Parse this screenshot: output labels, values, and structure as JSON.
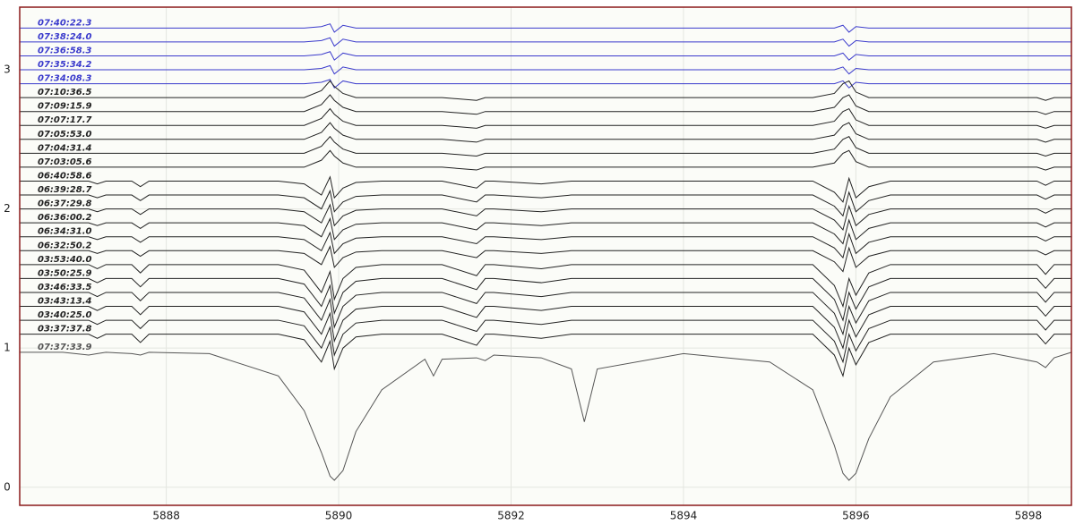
{
  "chart_data": {
    "type": "line",
    "x": [
      5886.3,
      5886.8,
      5887.1,
      5887.2,
      5887.3,
      5887.6,
      5887.7,
      5887.8,
      5888.5,
      5889.3,
      5889.6,
      5889.8,
      5889.9,
      5889.95,
      5890.05,
      5890.2,
      5890.5,
      5891.0,
      5891.1,
      5891.2,
      5891.6,
      5891.7,
      5891.8,
      5892.35,
      5892.7,
      5892.85,
      5893.0,
      5894.0,
      5895.0,
      5895.5,
      5895.75,
      5895.85,
      5895.92,
      5896.0,
      5896.15,
      5896.4,
      5896.9,
      5897.6,
      5898.1,
      5898.2,
      5898.3,
      5898.5
    ],
    "xlim": [
      5886.3,
      5898.5
    ],
    "xticks": [
      5888,
      5890,
      5892,
      5894,
      5896,
      5898
    ],
    "ylim": [
      -0.13,
      3.45
    ],
    "yticks": [
      0,
      1,
      2,
      3
    ],
    "grid": true,
    "series": [
      {
        "name": "07:40:22.3",
        "color": "#3a3acc",
        "values": [
          3.3,
          3.3,
          3.3,
          3.3,
          3.3,
          3.3,
          3.3,
          3.3,
          3.3,
          3.3,
          3.3,
          3.31,
          3.33,
          3.27,
          3.32,
          3.3,
          3.3,
          3.3,
          3.3,
          3.3,
          3.3,
          3.3,
          3.3,
          3.3,
          3.3,
          3.3,
          3.3,
          3.3,
          3.3,
          3.3,
          3.3,
          3.32,
          3.27,
          3.31,
          3.3,
          3.3,
          3.3,
          3.3,
          3.3,
          3.3,
          3.3,
          3.3
        ]
      },
      {
        "name": "07:38:24.0",
        "color": "#3a3acc",
        "values": [
          3.2,
          3.2,
          3.2,
          3.2,
          3.2,
          3.2,
          3.2,
          3.2,
          3.2,
          3.2,
          3.2,
          3.21,
          3.23,
          3.17,
          3.22,
          3.2,
          3.2,
          3.2,
          3.2,
          3.2,
          3.2,
          3.2,
          3.2,
          3.2,
          3.2,
          3.2,
          3.2,
          3.2,
          3.2,
          3.2,
          3.2,
          3.22,
          3.17,
          3.21,
          3.2,
          3.2,
          3.2,
          3.2,
          3.2,
          3.2,
          3.2,
          3.2
        ]
      },
      {
        "name": "07:36:58.3",
        "color": "#3a3acc",
        "values": [
          3.1,
          3.1,
          3.1,
          3.1,
          3.1,
          3.1,
          3.1,
          3.1,
          3.1,
          3.1,
          3.1,
          3.11,
          3.13,
          3.07,
          3.12,
          3.1,
          3.1,
          3.1,
          3.1,
          3.1,
          3.1,
          3.1,
          3.1,
          3.1,
          3.1,
          3.1,
          3.1,
          3.1,
          3.1,
          3.1,
          3.1,
          3.12,
          3.07,
          3.11,
          3.1,
          3.1,
          3.1,
          3.1,
          3.1,
          3.1,
          3.1,
          3.1
        ]
      },
      {
        "name": "07:35:34.2",
        "color": "#3a3acc",
        "values": [
          3,
          3,
          3,
          3,
          3,
          3,
          3,
          3,
          3,
          3,
          3,
          3.01,
          3.03,
          2.97,
          3.02,
          3,
          3,
          3,
          3,
          3,
          3,
          3,
          3,
          3,
          3,
          3,
          3,
          3,
          3,
          3,
          3,
          3.02,
          2.97,
          3.01,
          3,
          3,
          3,
          3,
          3,
          3,
          3,
          3
        ]
      },
      {
        "name": "07:34:08.3",
        "color": "#3a3acc",
        "values": [
          2.9,
          2.9,
          2.9,
          2.9,
          2.9,
          2.9,
          2.9,
          2.9,
          2.9,
          2.9,
          2.9,
          2.91,
          2.93,
          2.87,
          2.92,
          2.9,
          2.9,
          2.9,
          2.9,
          2.9,
          2.9,
          2.9,
          2.9,
          2.9,
          2.9,
          2.9,
          2.9,
          2.9,
          2.9,
          2.9,
          2.9,
          2.92,
          2.87,
          2.91,
          2.9,
          2.9,
          2.9,
          2.9,
          2.9,
          2.9,
          2.9,
          2.9
        ]
      },
      {
        "name": "07:10:36.5",
        "color": "#222222",
        "values": [
          2.8,
          2.8,
          2.8,
          2.8,
          2.8,
          2.8,
          2.8,
          2.8,
          2.8,
          2.8,
          2.8,
          2.85,
          2.92,
          2.88,
          2.83,
          2.8,
          2.8,
          2.8,
          2.8,
          2.8,
          2.78,
          2.8,
          2.8,
          2.8,
          2.8,
          2.8,
          2.8,
          2.8,
          2.8,
          2.8,
          2.83,
          2.9,
          2.92,
          2.84,
          2.8,
          2.8,
          2.8,
          2.8,
          2.8,
          2.78,
          2.8,
          2.8
        ]
      },
      {
        "name": "07:09:15.9",
        "color": "#222222",
        "values": [
          2.7,
          2.7,
          2.7,
          2.7,
          2.7,
          2.7,
          2.7,
          2.7,
          2.7,
          2.7,
          2.7,
          2.75,
          2.82,
          2.78,
          2.73,
          2.7,
          2.7,
          2.7,
          2.7,
          2.7,
          2.68,
          2.7,
          2.7,
          2.7,
          2.7,
          2.7,
          2.7,
          2.7,
          2.7,
          2.7,
          2.73,
          2.8,
          2.82,
          2.74,
          2.7,
          2.7,
          2.7,
          2.7,
          2.7,
          2.68,
          2.7,
          2.7
        ]
      },
      {
        "name": "07:07:17.7",
        "color": "#222222",
        "values": [
          2.6,
          2.6,
          2.6,
          2.6,
          2.6,
          2.6,
          2.6,
          2.6,
          2.6,
          2.6,
          2.6,
          2.65,
          2.72,
          2.68,
          2.63,
          2.6,
          2.6,
          2.6,
          2.6,
          2.6,
          2.58,
          2.6,
          2.6,
          2.6,
          2.6,
          2.6,
          2.6,
          2.6,
          2.6,
          2.6,
          2.63,
          2.7,
          2.72,
          2.64,
          2.6,
          2.6,
          2.6,
          2.6,
          2.6,
          2.58,
          2.6,
          2.6
        ]
      },
      {
        "name": "07:05:53.0",
        "color": "#222222",
        "values": [
          2.5,
          2.5,
          2.5,
          2.5,
          2.5,
          2.5,
          2.5,
          2.5,
          2.5,
          2.5,
          2.5,
          2.55,
          2.62,
          2.58,
          2.53,
          2.5,
          2.5,
          2.5,
          2.5,
          2.5,
          2.48,
          2.5,
          2.5,
          2.5,
          2.5,
          2.5,
          2.5,
          2.5,
          2.5,
          2.5,
          2.53,
          2.6,
          2.62,
          2.54,
          2.5,
          2.5,
          2.5,
          2.5,
          2.5,
          2.48,
          2.5,
          2.5
        ]
      },
      {
        "name": "07:04:31.4",
        "color": "#222222",
        "values": [
          2.4,
          2.4,
          2.4,
          2.4,
          2.4,
          2.4,
          2.4,
          2.4,
          2.4,
          2.4,
          2.4,
          2.45,
          2.52,
          2.48,
          2.43,
          2.4,
          2.4,
          2.4,
          2.4,
          2.4,
          2.38,
          2.4,
          2.4,
          2.4,
          2.4,
          2.4,
          2.4,
          2.4,
          2.4,
          2.4,
          2.43,
          2.5,
          2.52,
          2.44,
          2.4,
          2.4,
          2.4,
          2.4,
          2.4,
          2.38,
          2.4,
          2.4
        ]
      },
      {
        "name": "07:03:05.6",
        "color": "#222222",
        "values": [
          2.3,
          2.3,
          2.3,
          2.3,
          2.3,
          2.3,
          2.3,
          2.3,
          2.3,
          2.3,
          2.3,
          2.35,
          2.42,
          2.38,
          2.33,
          2.3,
          2.3,
          2.3,
          2.3,
          2.3,
          2.28,
          2.3,
          2.3,
          2.3,
          2.3,
          2.3,
          2.3,
          2.3,
          2.3,
          2.3,
          2.33,
          2.4,
          2.42,
          2.34,
          2.3,
          2.3,
          2.3,
          2.3,
          2.3,
          2.28,
          2.3,
          2.3
        ]
      },
      {
        "name": "06:40:58.6",
        "color": "#222222",
        "values": [
          2.2,
          2.2,
          2.2,
          2.18,
          2.2,
          2.2,
          2.16,
          2.2,
          2.2,
          2.2,
          2.18,
          2.1,
          2.23,
          2.08,
          2.15,
          2.19,
          2.2,
          2.2,
          2.2,
          2.2,
          2.15,
          2.2,
          2.2,
          2.18,
          2.2,
          2.2,
          2.2,
          2.2,
          2.2,
          2.2,
          2.12,
          2.05,
          2.22,
          2.08,
          2.16,
          2.2,
          2.2,
          2.2,
          2.2,
          2.17,
          2.2,
          2.2
        ]
      },
      {
        "name": "06:39:28.7",
        "color": "#222222",
        "values": [
          2.1,
          2.1,
          2.1,
          2.08,
          2.1,
          2.1,
          2.06,
          2.1,
          2.1,
          2.1,
          2.08,
          2,
          2.13,
          1.98,
          2.05,
          2.09,
          2.1,
          2.1,
          2.1,
          2.1,
          2.05,
          2.1,
          2.1,
          2.08,
          2.1,
          2.1,
          2.1,
          2.1,
          2.1,
          2.1,
          2.02,
          1.95,
          2.12,
          1.98,
          2.06,
          2.1,
          2.1,
          2.1,
          2.1,
          2.07,
          2.1,
          2.1
        ]
      },
      {
        "name": "06:37:29.8",
        "color": "#222222",
        "values": [
          2,
          2,
          2,
          1.98,
          2,
          2,
          1.96,
          2,
          2,
          2,
          1.98,
          1.9,
          2.03,
          1.88,
          1.95,
          1.99,
          2,
          2,
          2,
          2,
          1.95,
          2,
          2,
          1.98,
          2,
          2,
          2,
          2,
          2,
          2,
          1.92,
          1.85,
          2.02,
          1.88,
          1.96,
          2,
          2,
          2,
          2,
          1.97,
          2,
          2
        ]
      },
      {
        "name": "06:36:00.2",
        "color": "#222222",
        "values": [
          1.9,
          1.9,
          1.9,
          1.88,
          1.9,
          1.9,
          1.86,
          1.9,
          1.9,
          1.9,
          1.88,
          1.8,
          1.93,
          1.78,
          1.85,
          1.89,
          1.9,
          1.9,
          1.9,
          1.9,
          1.85,
          1.9,
          1.9,
          1.88,
          1.9,
          1.9,
          1.9,
          1.9,
          1.9,
          1.9,
          1.82,
          1.75,
          1.92,
          1.78,
          1.86,
          1.9,
          1.9,
          1.9,
          1.9,
          1.87,
          1.9,
          1.9
        ]
      },
      {
        "name": "06:34:31.0",
        "color": "#222222",
        "values": [
          1.8,
          1.8,
          1.8,
          1.78,
          1.8,
          1.8,
          1.76,
          1.8,
          1.8,
          1.8,
          1.78,
          1.7,
          1.83,
          1.68,
          1.75,
          1.79,
          1.8,
          1.8,
          1.8,
          1.8,
          1.75,
          1.8,
          1.8,
          1.78,
          1.8,
          1.8,
          1.8,
          1.8,
          1.8,
          1.8,
          1.72,
          1.65,
          1.82,
          1.68,
          1.76,
          1.8,
          1.8,
          1.8,
          1.8,
          1.77,
          1.8,
          1.8
        ]
      },
      {
        "name": "06:32:50.2",
        "color": "#222222",
        "values": [
          1.7,
          1.7,
          1.7,
          1.68,
          1.7,
          1.7,
          1.66,
          1.7,
          1.7,
          1.7,
          1.68,
          1.6,
          1.73,
          1.58,
          1.65,
          1.69,
          1.7,
          1.7,
          1.7,
          1.7,
          1.65,
          1.7,
          1.7,
          1.68,
          1.7,
          1.7,
          1.7,
          1.7,
          1.7,
          1.7,
          1.62,
          1.55,
          1.72,
          1.58,
          1.66,
          1.7,
          1.7,
          1.7,
          1.7,
          1.67,
          1.7,
          1.7
        ]
      },
      {
        "name": "03:53:40.0",
        "color": "#222222",
        "values": [
          1.6,
          1.6,
          1.6,
          1.57,
          1.6,
          1.6,
          1.54,
          1.6,
          1.6,
          1.6,
          1.56,
          1.4,
          1.55,
          1.35,
          1.5,
          1.58,
          1.6,
          1.6,
          1.6,
          1.6,
          1.52,
          1.6,
          1.6,
          1.57,
          1.6,
          1.6,
          1.6,
          1.6,
          1.6,
          1.6,
          1.45,
          1.3,
          1.5,
          1.38,
          1.54,
          1.6,
          1.6,
          1.6,
          1.6,
          1.53,
          1.6,
          1.6
        ]
      },
      {
        "name": "03:50:25.9",
        "color": "#222222",
        "values": [
          1.5,
          1.5,
          1.5,
          1.47,
          1.5,
          1.5,
          1.44,
          1.5,
          1.5,
          1.5,
          1.46,
          1.3,
          1.45,
          1.25,
          1.4,
          1.48,
          1.5,
          1.5,
          1.5,
          1.5,
          1.42,
          1.5,
          1.5,
          1.47,
          1.5,
          1.5,
          1.5,
          1.5,
          1.5,
          1.5,
          1.35,
          1.2,
          1.4,
          1.28,
          1.44,
          1.5,
          1.5,
          1.5,
          1.5,
          1.43,
          1.5,
          1.5
        ]
      },
      {
        "name": "03:46:33.5",
        "color": "#222222",
        "values": [
          1.4,
          1.4,
          1.4,
          1.37,
          1.4,
          1.4,
          1.34,
          1.4,
          1.4,
          1.4,
          1.36,
          1.2,
          1.35,
          1.15,
          1.3,
          1.38,
          1.4,
          1.4,
          1.4,
          1.4,
          1.32,
          1.4,
          1.4,
          1.37,
          1.4,
          1.4,
          1.4,
          1.4,
          1.4,
          1.4,
          1.25,
          1.1,
          1.3,
          1.18,
          1.34,
          1.4,
          1.4,
          1.4,
          1.4,
          1.33,
          1.4,
          1.4
        ]
      },
      {
        "name": "03:43:13.4",
        "color": "#222222",
        "values": [
          1.3,
          1.3,
          1.3,
          1.27,
          1.3,
          1.3,
          1.24,
          1.3,
          1.3,
          1.3,
          1.26,
          1.1,
          1.25,
          1.05,
          1.2,
          1.28,
          1.3,
          1.3,
          1.3,
          1.3,
          1.22,
          1.3,
          1.3,
          1.27,
          1.3,
          1.3,
          1.3,
          1.3,
          1.3,
          1.3,
          1.15,
          1,
          1.2,
          1.08,
          1.24,
          1.3,
          1.3,
          1.3,
          1.3,
          1.23,
          1.3,
          1.3
        ]
      },
      {
        "name": "03:40:25.0",
        "color": "#222222",
        "values": [
          1.2,
          1.2,
          1.2,
          1.17,
          1.2,
          1.2,
          1.14,
          1.2,
          1.2,
          1.2,
          1.16,
          1,
          1.15,
          0.95,
          1.1,
          1.18,
          1.2,
          1.2,
          1.2,
          1.2,
          1.12,
          1.2,
          1.2,
          1.17,
          1.2,
          1.2,
          1.2,
          1.2,
          1.2,
          1.2,
          1.05,
          0.9,
          1.1,
          0.98,
          1.14,
          1.2,
          1.2,
          1.2,
          1.2,
          1.13,
          1.2,
          1.2
        ]
      },
      {
        "name": "03:37:37.8",
        "color": "#222222",
        "values": [
          1.1,
          1.1,
          1.1,
          1.07,
          1.1,
          1.1,
          1.04,
          1.1,
          1.1,
          1.1,
          1.06,
          0.9,
          1.05,
          0.85,
          1,
          1.08,
          1.1,
          1.1,
          1.1,
          1.1,
          1.02,
          1.1,
          1.1,
          1.07,
          1.1,
          1.1,
          1.1,
          1.1,
          1.1,
          1.1,
          0.95,
          0.8,
          1,
          0.88,
          1.04,
          1.1,
          1.1,
          1.1,
          1.1,
          1.03,
          1.1,
          1.1
        ]
      },
      {
        "name": "07:37:33.9",
        "color": "#555555",
        "values": [
          0.97,
          0.97,
          0.95,
          0.96,
          0.97,
          0.96,
          0.95,
          0.97,
          0.96,
          0.8,
          0.55,
          0.25,
          0.08,
          0.05,
          0.12,
          0.4,
          0.7,
          0.92,
          0.8,
          0.92,
          0.93,
          0.91,
          0.95,
          0.93,
          0.85,
          0.47,
          0.85,
          0.96,
          0.9,
          0.7,
          0.3,
          0.1,
          0.05,
          0.1,
          0.35,
          0.65,
          0.9,
          0.96,
          0.9,
          0.86,
          0.93,
          0.97
        ]
      }
    ]
  }
}
